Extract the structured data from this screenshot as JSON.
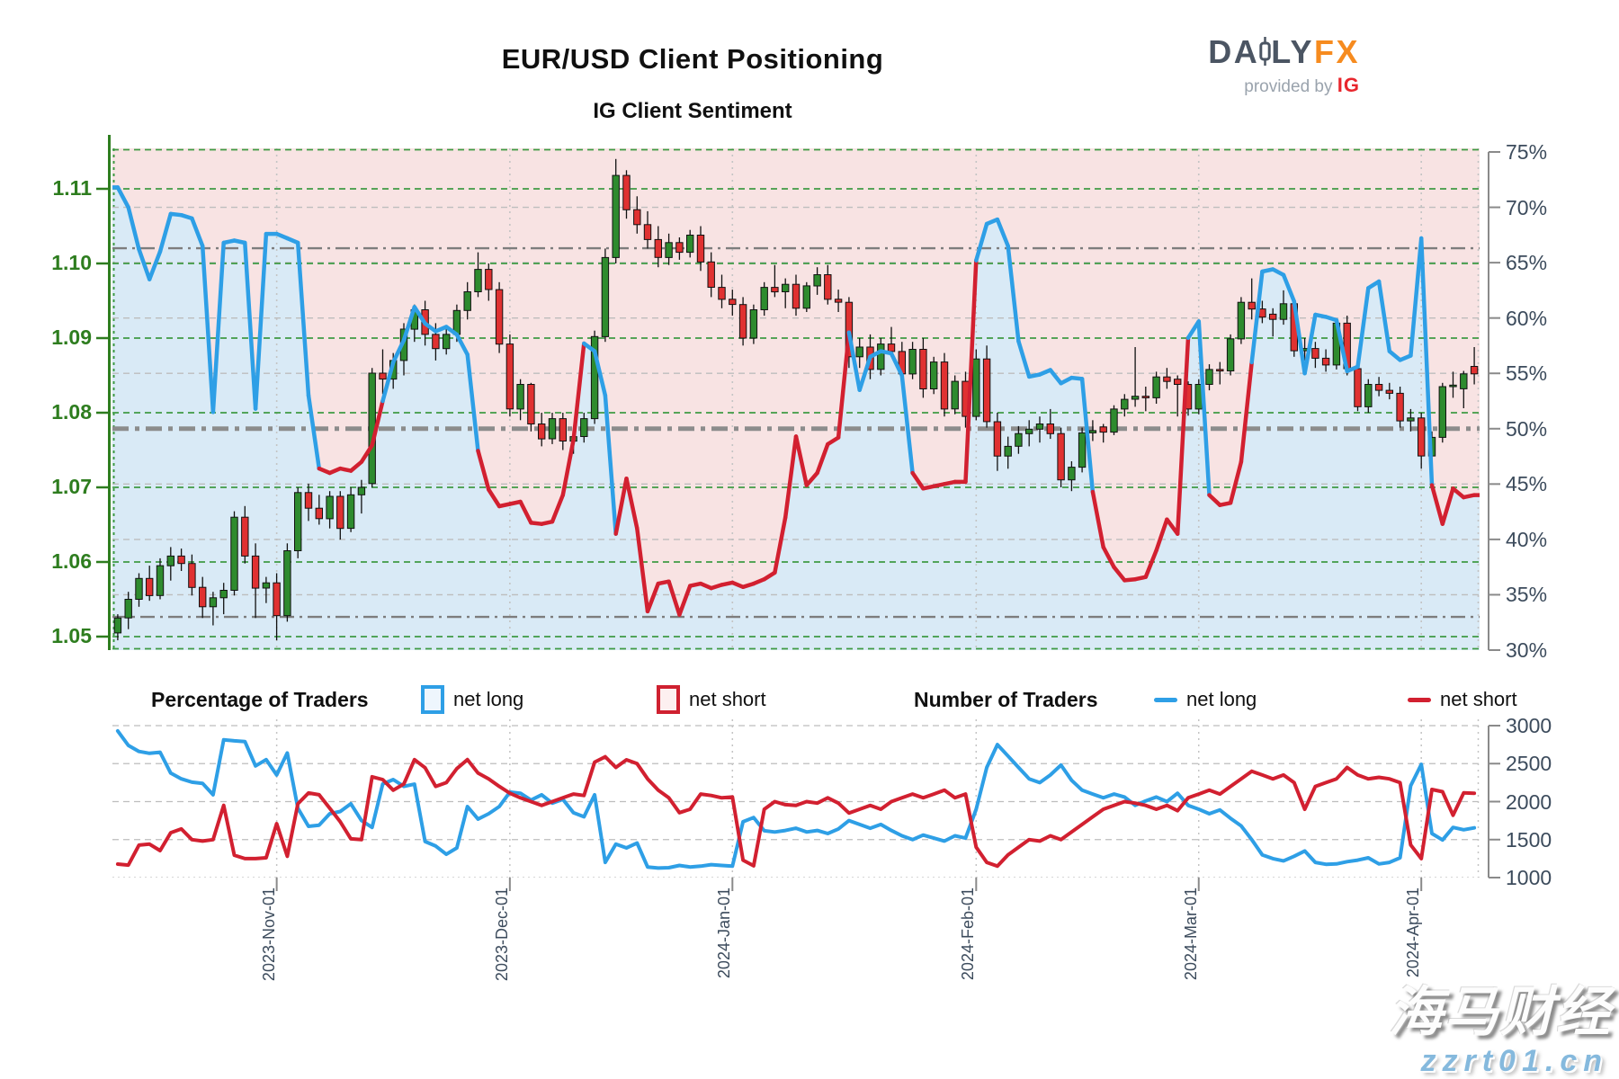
{
  "title": "EUR/USD Client Positioning",
  "subtitle": "IG Client Sentiment",
  "logo": {
    "brand_main": "DA",
    "brand_rest": "LY",
    "brand_accent": "FX",
    "tagline": "provided by",
    "provider": "IG"
  },
  "legend": {
    "pct_title": "Percentage of Traders",
    "pct_long": "net long",
    "pct_short": "net short",
    "num_title": "Number of Traders",
    "num_long": "net long",
    "num_short": "net short"
  },
  "watermark": {
    "line1": "海马财经",
    "line2": "zzrt01.cn"
  },
  "colors": {
    "net_long_line": "#2e9fe6",
    "net_short_line": "#d22030",
    "candle_up": "#2e8b2e",
    "candle_down": "#e03131",
    "wick": "#111111",
    "fill_above": "#f8e3e3",
    "fill_below": "#d9eaf6",
    "grid_green": "#3f9b44",
    "grid_gray": "#bdbdbd",
    "grid_month": "#c4c4c4",
    "threshold_gray": "#7d7d7d",
    "mid_line": "#8c8c8c",
    "price_axis_text": "#2e7d1f",
    "pct_axis_text": "#3c4b5c"
  },
  "chart_data": {
    "type": "candlestick+line",
    "title": "EUR/USD Client Positioning - IG Client Sentiment",
    "n": 129,
    "price_axis": {
      "ticks": [
        1.05,
        1.06,
        1.07,
        1.08,
        1.09,
        1.1,
        1.11
      ],
      "min": 1.0482,
      "max": 1.1149
    },
    "pct_axis": {
      "ticks": [
        30,
        35,
        40,
        45,
        50,
        55,
        60,
        65,
        70,
        75
      ],
      "min": 30,
      "max": 75
    },
    "thresholds": {
      "mid": 50,
      "upper": 66.3,
      "lower": 33.0
    },
    "month_ticks": [
      {
        "label": "2023-Nov-01",
        "index": 15
      },
      {
        "label": "2023-Dec-01",
        "index": 37
      },
      {
        "label": "2024-Jan-01",
        "index": 58
      },
      {
        "label": "2024-Feb-01",
        "index": 81
      },
      {
        "label": "2024-Mar-01",
        "index": 102
      },
      {
        "label": "2024-Apr-01",
        "index": 123
      }
    ],
    "candles_ohlc": [
      [
        1.0505,
        1.053,
        1.0495,
        1.0525
      ],
      [
        1.0525,
        1.056,
        1.051,
        1.055
      ],
      [
        1.055,
        1.0585,
        1.054,
        1.0578
      ],
      [
        1.0578,
        1.0595,
        1.0548,
        1.0555
      ],
      [
        1.0555,
        1.0605,
        1.055,
        1.0595
      ],
      [
        1.0595,
        1.062,
        1.0575,
        1.0608
      ],
      [
        1.0608,
        1.0618,
        1.0588,
        1.0598
      ],
      [
        1.0598,
        1.061,
        1.0555,
        1.0566
      ],
      [
        1.0566,
        1.058,
        1.0525,
        1.054
      ],
      [
        1.054,
        1.056,
        1.0515,
        1.0552
      ],
      [
        1.0552,
        1.0572,
        1.053,
        1.0562
      ],
      [
        1.0562,
        1.0668,
        1.0555,
        1.066
      ],
      [
        1.066,
        1.0675,
        1.0598,
        1.0608
      ],
      [
        1.0608,
        1.0625,
        1.0525,
        1.0565
      ],
      [
        1.0565,
        1.058,
        1.0545,
        1.0572
      ],
      [
        1.0572,
        1.0585,
        1.0495,
        1.0528
      ],
      [
        1.0528,
        1.0625,
        1.052,
        1.0615
      ],
      [
        1.0615,
        1.07,
        1.0605,
        1.0693
      ],
      [
        1.0693,
        1.0705,
        1.0655,
        1.0672
      ],
      [
        1.0672,
        1.069,
        1.065,
        1.0658
      ],
      [
        1.0658,
        1.0695,
        1.0645,
        1.0688
      ],
      [
        1.0688,
        1.0695,
        1.063,
        1.0645
      ],
      [
        1.0645,
        1.07,
        1.064,
        1.069
      ],
      [
        1.069,
        1.071,
        1.0665,
        1.07
      ],
      [
        1.0705,
        1.086,
        1.07,
        1.0853
      ],
      [
        1.0853,
        1.0885,
        1.0825,
        1.0845
      ],
      [
        1.0845,
        1.088,
        1.0832,
        1.087
      ],
      [
        1.087,
        1.092,
        1.085,
        1.0912
      ],
      [
        1.0912,
        1.0945,
        1.0895,
        1.0938
      ],
      [
        1.0938,
        1.095,
        1.089,
        1.0905
      ],
      [
        1.0905,
        1.092,
        1.087,
        1.0886
      ],
      [
        1.0886,
        1.0915,
        1.0878,
        1.0905
      ],
      [
        1.0905,
        1.0945,
        1.0895,
        1.0937
      ],
      [
        1.0937,
        1.0975,
        1.0925,
        1.0962
      ],
      [
        1.0962,
        1.1015,
        1.0955,
        1.0992
      ],
      [
        1.0992,
        1.1,
        1.095,
        1.0965
      ],
      [
        1.0965,
        1.0975,
        1.088,
        1.0892
      ],
      [
        1.0892,
        1.0905,
        1.0795,
        1.0805
      ],
      [
        1.0805,
        1.0845,
        1.079,
        1.0838
      ],
      [
        1.0838,
        1.084,
        1.0775,
        1.0785
      ],
      [
        1.0785,
        1.08,
        1.0755,
        1.0765
      ],
      [
        1.0765,
        1.08,
        1.0758,
        1.0792
      ],
      [
        1.0792,
        1.08,
        1.075,
        1.0762
      ],
      [
        1.0762,
        1.078,
        1.0745,
        1.0768
      ],
      [
        1.0768,
        1.08,
        1.076,
        1.0792
      ],
      [
        1.0792,
        1.091,
        1.0785,
        1.0902
      ],
      [
        1.0902,
        1.102,
        1.0895,
        1.1008
      ],
      [
        1.1008,
        1.114,
        1.1,
        1.1118
      ],
      [
        1.1118,
        1.1125,
        1.106,
        1.1072
      ],
      [
        1.1072,
        1.109,
        1.104,
        1.1052
      ],
      [
        1.1052,
        1.107,
        1.102,
        1.1032
      ],
      [
        1.1032,
        1.105,
        1.0995,
        1.1008
      ],
      [
        1.1008,
        1.104,
        1.0998,
        1.1028
      ],
      [
        1.1028,
        1.1035,
        1.1005,
        1.1015
      ],
      [
        1.1015,
        1.1045,
        1.1008,
        1.1038
      ],
      [
        1.1038,
        1.105,
        1.099,
        1.1002
      ],
      [
        1.1002,
        1.1015,
        1.0955,
        1.0968
      ],
      [
        1.0968,
        1.0985,
        1.094,
        1.0952
      ],
      [
        1.0952,
        1.0965,
        1.093,
        1.0945
      ],
      [
        1.0945,
        1.0955,
        1.089,
        1.09
      ],
      [
        1.09,
        1.0945,
        1.0892,
        1.0938
      ],
      [
        1.0938,
        1.0975,
        1.093,
        1.0968
      ],
      [
        1.0968,
        1.0998,
        1.0955,
        1.0962
      ],
      [
        1.0962,
        1.098,
        1.094,
        1.0972
      ],
      [
        1.0972,
        1.0985,
        1.093,
        1.094
      ],
      [
        1.094,
        1.0975,
        1.0935,
        1.097
      ],
      [
        1.097,
        1.0995,
        1.0958,
        1.0985
      ],
      [
        1.0985,
        1.0998,
        1.0945,
        1.0952
      ],
      [
        1.0952,
        1.0965,
        1.0935,
        1.0948
      ],
      [
        1.0948,
        1.0955,
        1.086,
        1.0875
      ],
      [
        1.0875,
        1.09,
        1.086,
        1.0888
      ],
      [
        1.0888,
        1.0905,
        1.0845,
        1.0858
      ],
      [
        1.0858,
        1.09,
        1.085,
        1.0892
      ],
      [
        1.0892,
        1.0915,
        1.0875,
        1.0882
      ],
      [
        1.0882,
        1.0895,
        1.084,
        1.0852
      ],
      [
        1.0852,
        1.0895,
        1.0845,
        1.0885
      ],
      [
        1.0885,
        1.09,
        1.082,
        1.0832
      ],
      [
        1.0832,
        1.0875,
        1.0825,
        1.0868
      ],
      [
        1.0868,
        1.088,
        1.0795,
        1.0805
      ],
      [
        1.0805,
        1.085,
        1.0798,
        1.0842
      ],
      [
        1.0842,
        1.0855,
        1.078,
        1.0795
      ],
      [
        1.0795,
        1.0885,
        1.079,
        1.0872
      ],
      [
        1.0872,
        1.089,
        1.078,
        1.0788
      ],
      [
        1.0788,
        1.08,
        1.0722,
        1.0742
      ],
      [
        1.0742,
        1.0768,
        1.0725,
        1.0755
      ],
      [
        1.0755,
        1.0782,
        1.0745,
        1.0772
      ],
      [
        1.0772,
        1.079,
        1.0755,
        1.0778
      ],
      [
        1.0778,
        1.0795,
        1.076,
        1.0785
      ],
      [
        1.0785,
        1.0805,
        1.0765,
        1.0772
      ],
      [
        1.0772,
        1.078,
        1.07,
        1.071
      ],
      [
        1.071,
        1.0735,
        1.0695,
        1.0727
      ],
      [
        1.0727,
        1.078,
        1.072,
        1.0773
      ],
      [
        1.0773,
        1.079,
        1.0762,
        1.0776
      ],
      [
        1.0781,
        1.0785,
        1.076,
        1.0774
      ],
      [
        1.0774,
        1.081,
        1.077,
        1.0805
      ],
      [
        1.0805,
        1.0825,
        1.0795,
        1.0818
      ],
      [
        1.0818,
        1.0888,
        1.0808,
        1.0822
      ],
      [
        1.0822,
        1.0835,
        1.0802,
        1.082
      ],
      [
        1.082,
        1.0855,
        1.0812,
        1.0848
      ],
      [
        1.0848,
        1.086,
        1.0832,
        1.0842
      ],
      [
        1.0845,
        1.085,
        1.0795,
        1.0838
      ],
      [
        1.0838,
        1.0842,
        1.0796,
        1.0805
      ],
      [
        1.0805,
        1.0845,
        1.0798,
        1.0838
      ],
      [
        1.0838,
        1.0865,
        1.083,
        1.0858
      ],
      [
        1.0858,
        1.0868,
        1.0838,
        1.0856
      ],
      [
        1.0856,
        1.0905,
        1.085,
        1.0899
      ],
      [
        1.0899,
        1.0955,
        1.0892,
        1.0948
      ],
      [
        1.0948,
        1.098,
        1.0925,
        1.0939
      ],
      [
        1.0939,
        1.095,
        1.092,
        1.0928
      ],
      [
        1.0932,
        1.094,
        1.0902,
        1.0925
      ],
      [
        1.0925,
        1.0964,
        1.0918,
        1.0946
      ],
      [
        1.0946,
        1.0952,
        1.0875,
        1.0883
      ],
      [
        1.0883,
        1.09,
        1.087,
        1.0886
      ],
      [
        1.0886,
        1.0895,
        1.086,
        1.0873
      ],
      [
        1.0873,
        1.0885,
        1.0855,
        1.0864
      ],
      [
        1.0864,
        1.0925,
        1.0858,
        1.092
      ],
      [
        1.092,
        1.093,
        1.085,
        1.0859
      ],
      [
        1.0859,
        1.087,
        1.0802,
        1.0808
      ],
      [
        1.0808,
        1.0845,
        1.08,
        1.0838
      ],
      [
        1.0838,
        1.0848,
        1.0822,
        1.083
      ],
      [
        1.083,
        1.084,
        1.0818,
        1.0826
      ],
      [
        1.0826,
        1.0835,
        1.078,
        1.0789
      ],
      [
        1.0789,
        1.0805,
        1.0775,
        1.0793
      ],
      [
        1.0793,
        1.08,
        1.0725,
        1.0742
      ],
      [
        1.0742,
        1.0775,
        1.0735,
        1.0767
      ],
      [
        1.0767,
        1.084,
        1.076,
        1.0835
      ],
      [
        1.0835,
        1.0855,
        1.082,
        1.0837
      ],
      [
        1.0832,
        1.0856,
        1.0806,
        1.0852
      ],
      [
        1.0862,
        1.0888,
        1.0838,
        1.0852
      ]
    ],
    "sentiment_pct": [
      71.8,
      70.0,
      66.2,
      63.5,
      66.0,
      69.4,
      69.3,
      69.0,
      66.5,
      51.5,
      66.8,
      67.0,
      66.8,
      51.8,
      67.6,
      67.6,
      67.2,
      66.8,
      53.0,
      46.4,
      46.0,
      46.4,
      46.2,
      47.0,
      48.5,
      52.5,
      56.0,
      58.0,
      61.0,
      59.5,
      58.8,
      59.2,
      58.5,
      56.7,
      48.0,
      44.5,
      43.0,
      43.2,
      43.4,
      41.5,
      41.4,
      41.6,
      44.0,
      49.0,
      57.7,
      57.0,
      53.0,
      40.5,
      45.5,
      41.0,
      33.5,
      36.0,
      36.2,
      33.2,
      35.8,
      36.0,
      35.6,
      35.9,
      36.1,
      35.7,
      36.0,
      36.4,
      37.0,
      42.0,
      49.3,
      44.9,
      46.0,
      48.6,
      49.2,
      58.7,
      53.5,
      56.5,
      57.0,
      56.8,
      54.8,
      46.0,
      44.6,
      44.8,
      45.0,
      45.2,
      45.2,
      65.2,
      68.5,
      68.9,
      66.5,
      57.9,
      54.7,
      54.9,
      55.3,
      54.1,
      54.6,
      54.5,
      44.3,
      39.3,
      37.5,
      36.3,
      36.4,
      36.6,
      39.0,
      41.8,
      40.5,
      58.2,
      59.7,
      44.0,
      43.1,
      43.3,
      47.0,
      56.0,
      64.2,
      64.4,
      63.9,
      61.5,
      55.0,
      60.3,
      60.1,
      59.8,
      55.2,
      55.6,
      62.7,
      63.3,
      57.0,
      56.2,
      56.6,
      67.2,
      44.9,
      41.4,
      44.6,
      43.8,
      44.0
    ],
    "traders": {
      "axis_ticks": [
        1000,
        1500,
        2000,
        2500,
        3000
      ],
      "long": [
        2930,
        2740,
        2660,
        2635,
        2650,
        2375,
        2300,
        2256,
        2240,
        2090,
        2813,
        2800,
        2790,
        2470,
        2553,
        2350,
        2640,
        1913,
        1675,
        1690,
        1840,
        1870,
        1972,
        1750,
        1660,
        2232,
        2290,
        2200,
        2230,
        1475,
        1415,
        1307,
        1390,
        1935,
        1770,
        1840,
        1935,
        2125,
        2110,
        2020,
        2090,
        1980,
        2030,
        1853,
        1800,
        2090,
        1200,
        1440,
        1390,
        1455,
        1140,
        1125,
        1130,
        1160,
        1140,
        1150,
        1170,
        1160,
        1150,
        1735,
        1790,
        1617,
        1600,
        1620,
        1650,
        1600,
        1620,
        1580,
        1640,
        1750,
        1700,
        1650,
        1700,
        1620,
        1550,
        1500,
        1560,
        1520,
        1480,
        1550,
        1520,
        1900,
        2450,
        2750,
        2600,
        2450,
        2300,
        2250,
        2350,
        2480,
        2280,
        2150,
        2100,
        2050,
        2100,
        2060,
        1950,
        2010,
        2060,
        2000,
        2110,
        1950,
        1900,
        1840,
        1890,
        1780,
        1680,
        1500,
        1300,
        1250,
        1220,
        1280,
        1350,
        1200,
        1175,
        1180,
        1210,
        1230,
        1260,
        1180,
        1200,
        1260,
        2210,
        2490,
        1580,
        1495,
        1660,
        1630,
        1655
      ],
      "short": [
        1178,
        1165,
        1427,
        1440,
        1355,
        1590,
        1640,
        1500,
        1480,
        1500,
        1950,
        1295,
        1250,
        1250,
        1260,
        1710,
        1280,
        1972,
        2114,
        2090,
        1913,
        1735,
        1510,
        1500,
        2327,
        2290,
        2150,
        2232,
        2553,
        2446,
        2200,
        2250,
        2434,
        2553,
        2375,
        2300,
        2200,
        2110,
        2050,
        2000,
        1950,
        2000,
        2050,
        2100,
        2080,
        2520,
        2590,
        2450,
        2550,
        2500,
        2300,
        2150,
        2050,
        1855,
        1900,
        2100,
        2080,
        2050,
        2060,
        1230,
        1155,
        1900,
        2000,
        1960,
        1950,
        2000,
        1980,
        2050,
        1980,
        1850,
        1900,
        1950,
        1900,
        2000,
        2050,
        2100,
        2050,
        2100,
        2150,
        2050,
        2100,
        1400,
        1200,
        1150,
        1300,
        1400,
        1500,
        1480,
        1550,
        1500,
        1600,
        1700,
        1800,
        1900,
        1950,
        2000,
        1980,
        1950,
        1900,
        1950,
        1880,
        2050,
        2100,
        2150,
        2100,
        2200,
        2300,
        2400,
        2350,
        2300,
        2350,
        2250,
        1900,
        2200,
        2250,
        2300,
        2450,
        2350,
        2300,
        2320,
        2300,
        2250,
        1430,
        1250,
        2160,
        2130,
        1820,
        2115,
        2110
      ]
    }
  }
}
